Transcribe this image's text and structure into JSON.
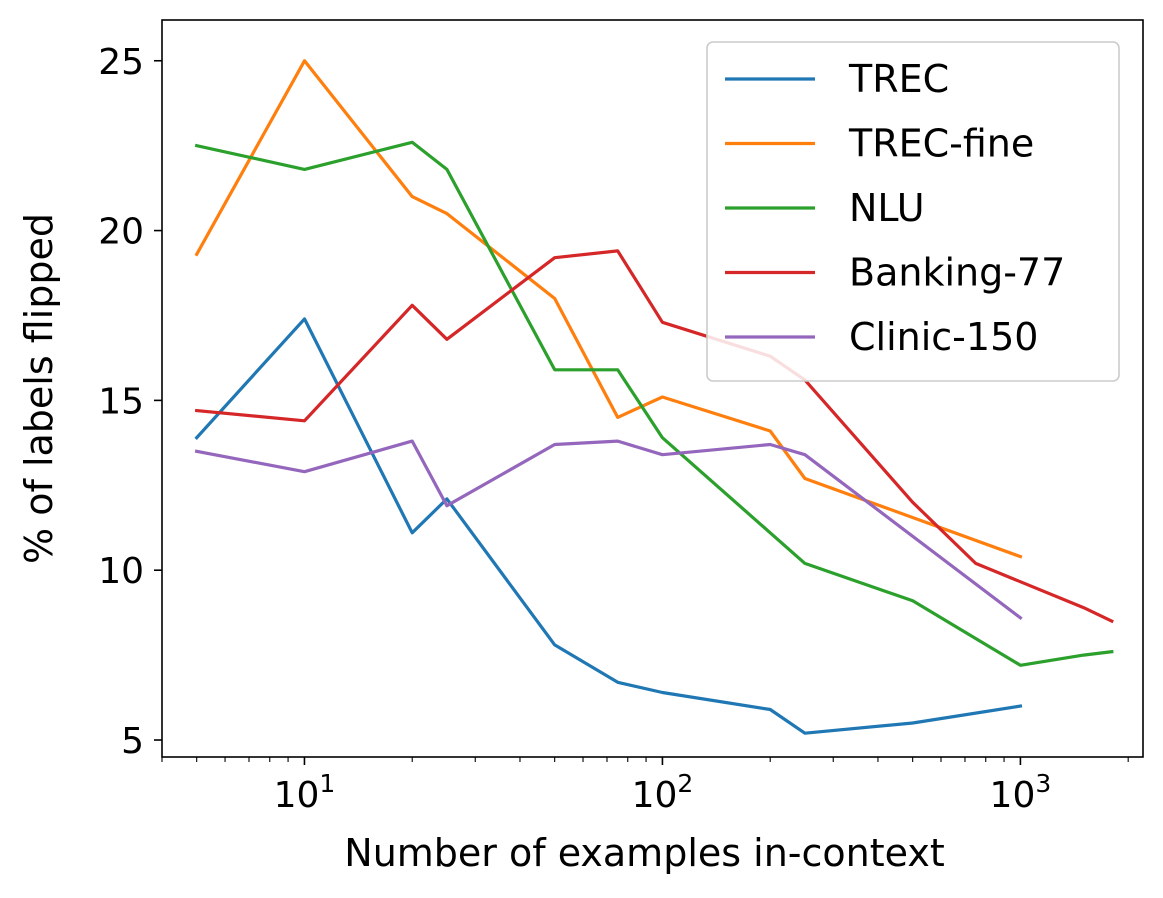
{
  "chart_data": {
    "type": "line",
    "xlabel": "Number of examples in-context",
    "ylabel": "% of labels flipped",
    "xscale": "log",
    "xlim": [
      4,
      2200
    ],
    "ylim": [
      4.5,
      26.2
    ],
    "grid": false,
    "legend_position": "top-right",
    "x_ticks": [
      {
        "value": 10,
        "base": "10",
        "exp": "1"
      },
      {
        "value": 100,
        "base": "10",
        "exp": "2"
      },
      {
        "value": 1000,
        "base": "10",
        "exp": "3"
      }
    ],
    "y_ticks": [
      {
        "value": 5,
        "label": "5"
      },
      {
        "value": 10,
        "label": "10"
      },
      {
        "value": 15,
        "label": "15"
      },
      {
        "value": 20,
        "label": "20"
      },
      {
        "value": 25,
        "label": "25"
      }
    ],
    "series": [
      {
        "name": "TREC",
        "color": "#1f77b4",
        "x": [
          5,
          10,
          20,
          25,
          50,
          75,
          100,
          200,
          250,
          500,
          1000
        ],
        "y": [
          13.9,
          17.4,
          11.1,
          12.1,
          7.8,
          6.7,
          6.4,
          5.9,
          5.2,
          5.5,
          6.0
        ]
      },
      {
        "name": "TREC-fine",
        "color": "#ff7f0e",
        "x": [
          5,
          10,
          20,
          25,
          50,
          75,
          100,
          200,
          250,
          1000
        ],
        "y": [
          19.3,
          25.0,
          21.0,
          20.5,
          18.0,
          14.5,
          15.1,
          14.1,
          12.7,
          10.4
        ]
      },
      {
        "name": "NLU",
        "color": "#2ca02c",
        "x": [
          5,
          10,
          20,
          25,
          50,
          75,
          100,
          200,
          250,
          500,
          1000,
          1500,
          1800
        ],
        "y": [
          22.5,
          21.8,
          22.6,
          21.8,
          15.9,
          15.9,
          13.9,
          11.1,
          10.2,
          9.1,
          7.2,
          7.5,
          7.6
        ]
      },
      {
        "name": "Banking-77",
        "color": "#d62728",
        "x": [
          5,
          10,
          20,
          25,
          50,
          75,
          100,
          200,
          250,
          500,
          750,
          1500,
          1800
        ],
        "y": [
          14.7,
          14.4,
          17.8,
          16.8,
          19.2,
          19.4,
          17.3,
          16.3,
          15.6,
          12.0,
          10.2,
          8.9,
          8.5
        ]
      },
      {
        "name": "Clinic-150",
        "color": "#9467bd",
        "x": [
          5,
          10,
          20,
          25,
          50,
          75,
          100,
          200,
          250,
          1000
        ],
        "y": [
          13.5,
          12.9,
          13.8,
          11.9,
          13.7,
          13.8,
          13.4,
          13.7,
          13.4,
          8.6
        ]
      }
    ]
  }
}
